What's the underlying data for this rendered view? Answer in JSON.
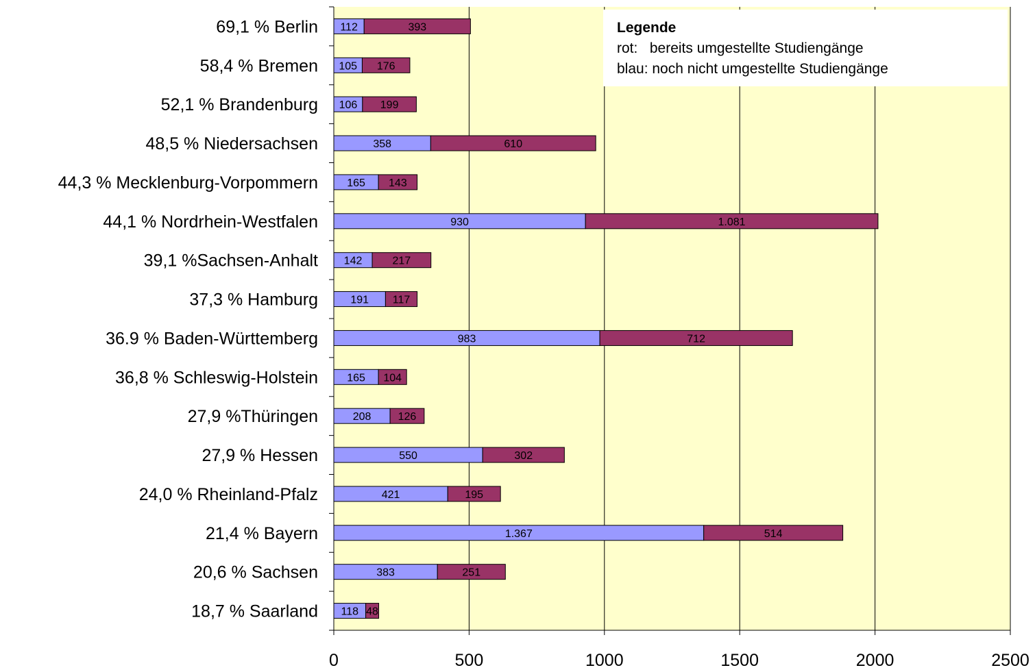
{
  "chart_data": {
    "type": "bar",
    "orientation": "horizontal",
    "stacked": true,
    "categories": [
      "69,1 % Berlin",
      "58,4 % Bremen",
      "52,1 % Brandenburg",
      "48,5 % Niedersachsen",
      "44,3 % Mecklenburg-Vorpommern",
      "44,1 % Nordrhein-Westfalen",
      "39,1 %Sachsen-Anhalt",
      "37,3 % Hamburg",
      "36.9 % Baden-Württemberg",
      "36,8 % Schleswig-Holstein",
      "27,9 %Thüringen",
      "27,9 % Hessen",
      "24,0 % Rheinland-Pfalz",
      "21,4 % Bayern",
      "20,6 % Sachsen",
      "18,7 % Saarland"
    ],
    "series": [
      {
        "color": "#9999ff",
        "values": [
          112,
          105,
          106,
          358,
          165,
          930,
          142,
          191,
          983,
          165,
          208,
          550,
          421,
          1367,
          383,
          118
        ],
        "labels": [
          "112",
          "105",
          "106",
          "358",
          "165",
          "930",
          "142",
          "191",
          "983",
          "165",
          "208",
          "550",
          "421",
          "1.367",
          "383",
          "118"
        ]
      },
      {
        "color": "#993366",
        "values": [
          393,
          176,
          199,
          610,
          143,
          1081,
          217,
          117,
          712,
          104,
          126,
          302,
          195,
          514,
          251,
          48
        ],
        "labels": [
          "393",
          "176",
          "199",
          "610",
          "143",
          "1.081",
          "217",
          "117",
          "712",
          "104",
          "126",
          "302",
          "195",
          "514",
          "251",
          "48"
        ]
      }
    ],
    "xlim": [
      0,
      2500
    ],
    "xticks": [
      0,
      500,
      1000,
      1500,
      2000,
      2500
    ],
    "grid": "vertical",
    "legend_position": "top-right",
    "plot_background": "#ffffcc"
  },
  "legend": {
    "title": "Legende",
    "line1": "rot:   bereits umgestellte Studiengänge",
    "line2": "blau: noch nicht umgestellte Studiengänge"
  }
}
